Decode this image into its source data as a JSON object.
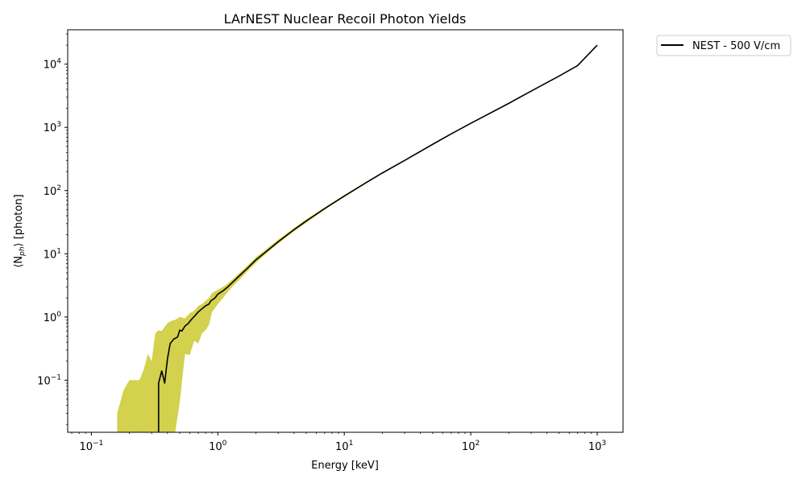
{
  "chart_data": {
    "type": "line",
    "title": "LArNEST Nuclear Recoil Photon Yields",
    "xlabel": "Energy [keV]",
    "ylabel_parts": [
      "⟨N",
      "ph",
      "⟩ [photon]"
    ],
    "xscale": "log",
    "yscale": "log",
    "xlim": [
      0.065,
      1600
    ],
    "ylim": [
      0.015,
      35000
    ],
    "x_ticks": [
      {
        "value": 0.1,
        "base": "10",
        "exp": "−1"
      },
      {
        "value": 1,
        "base": "10",
        "exp": "0"
      },
      {
        "value": 10,
        "base": "10",
        "exp": "1"
      },
      {
        "value": 100,
        "base": "10",
        "exp": "2"
      },
      {
        "value": 1000,
        "base": "10",
        "exp": "3"
      }
    ],
    "y_ticks": [
      {
        "value": 0.1,
        "base": "10",
        "exp": "−1"
      },
      {
        "value": 1,
        "base": "10",
        "exp": "0"
      },
      {
        "value": 10,
        "base": "10",
        "exp": "1"
      },
      {
        "value": 100,
        "base": "10",
        "exp": "2"
      },
      {
        "value": 1000,
        "base": "10",
        "exp": "3"
      },
      {
        "value": 10000,
        "base": "10",
        "exp": "4"
      }
    ],
    "grid": false,
    "legend_position": "outside-top-right",
    "series": [
      {
        "name": "NEST - 500 V/cm",
        "color": "#000000",
        "x": [
          0.34,
          0.34,
          0.36,
          0.38,
          0.4,
          0.42,
          0.45,
          0.48,
          0.5,
          0.52,
          0.55,
          0.58,
          0.62,
          0.66,
          0.7,
          0.75,
          0.8,
          0.85,
          0.88,
          0.95,
          1.0,
          1.1,
          1.2,
          1.3,
          1.5,
          1.7,
          2.0,
          2.5,
          3.0,
          4.0,
          5.0,
          7.0,
          10,
          15,
          20,
          30,
          50,
          70,
          100,
          200,
          300,
          500,
          700,
          1000
        ],
        "y": [
          0.015,
          0.09,
          0.14,
          0.09,
          0.22,
          0.38,
          0.45,
          0.48,
          0.62,
          0.6,
          0.72,
          0.78,
          0.92,
          1.05,
          1.2,
          1.35,
          1.5,
          1.6,
          1.8,
          2.0,
          2.3,
          2.6,
          3.0,
          3.5,
          4.6,
          5.8,
          8.0,
          11.5,
          15.5,
          24,
          33,
          52,
          82,
          135,
          190,
          300,
          540,
          790,
          1160,
          2400,
          3750,
          6500,
          9500,
          20000
        ]
      }
    ],
    "bands": [
      {
        "color": "#c8c620",
        "x": [
          0.16,
          0.18,
          0.2,
          0.22,
          0.24,
          0.26,
          0.28,
          0.3,
          0.32,
          0.34,
          0.36,
          0.38,
          0.4,
          0.43,
          0.46,
          0.5,
          0.55,
          0.6,
          0.65,
          0.7,
          0.75,
          0.8,
          0.85,
          0.9,
          1.0,
          1.1,
          1.2,
          1.3,
          1.5,
          1.7,
          2.0,
          2.5,
          3.0,
          4.0,
          5.0,
          7.0,
          10,
          15,
          20,
          30,
          50,
          70,
          100,
          200,
          300,
          500,
          700,
          1000
        ],
        "upper": [
          0.03,
          0.07,
          0.1,
          0.1,
          0.1,
          0.15,
          0.26,
          0.2,
          0.55,
          0.62,
          0.6,
          0.7,
          0.8,
          0.87,
          0.9,
          1.0,
          0.95,
          1.15,
          1.25,
          1.5,
          1.6,
          1.8,
          2.0,
          2.4,
          2.7,
          3.0,
          3.4,
          3.9,
          5.1,
          6.4,
          8.8,
          12.5,
          16.8,
          25.5,
          35,
          54,
          85,
          139,
          195,
          305,
          550,
          800,
          1175,
          2430,
          3800,
          6580,
          9600,
          20200
        ],
        "lower": [
          0.015,
          0.015,
          0.015,
          0.015,
          0.015,
          0.015,
          0.015,
          0.015,
          0.015,
          0.015,
          0.015,
          0.015,
          0.015,
          0.015,
          0.015,
          0.045,
          0.26,
          0.25,
          0.42,
          0.38,
          0.55,
          0.62,
          0.75,
          1.2,
          1.6,
          2.0,
          2.5,
          3.0,
          4.0,
          5.2,
          7.2,
          10.7,
          14.5,
          22.7,
          31,
          50,
          79,
          131,
          185,
          295,
          530,
          780,
          1145,
          2370,
          3700,
          6420,
          9400,
          19800
        ]
      }
    ]
  }
}
